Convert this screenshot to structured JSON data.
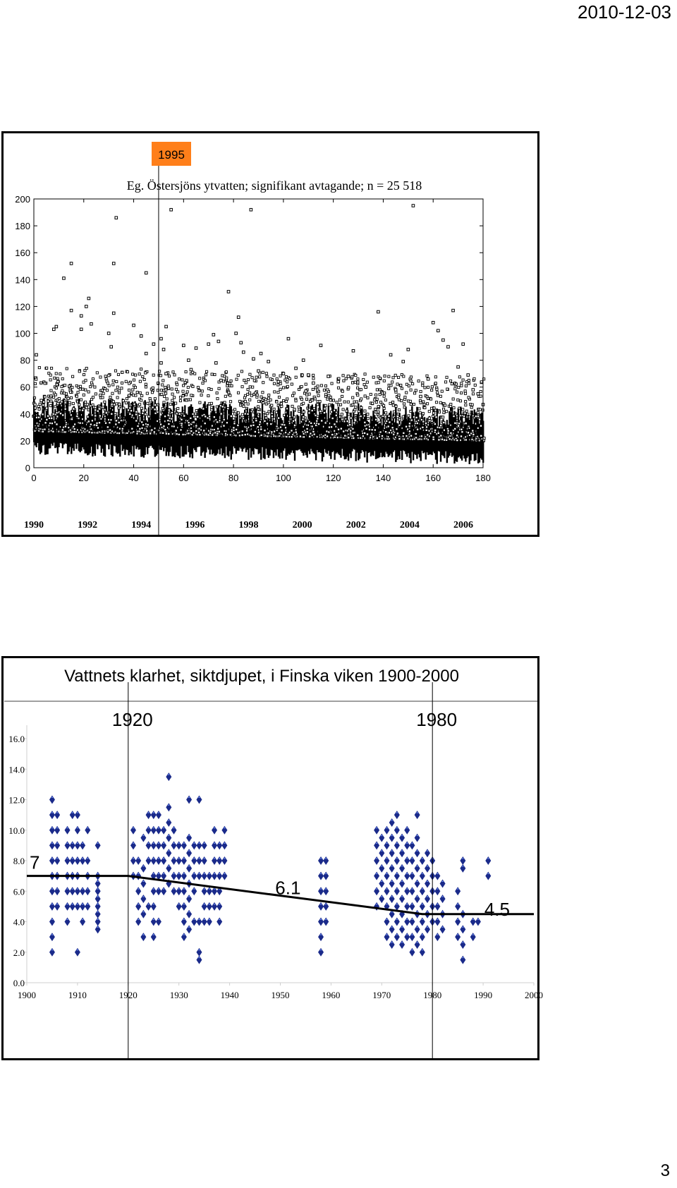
{
  "header": {
    "date": "2010-12-03"
  },
  "footer": {
    "page_number": "3"
  },
  "colors": {
    "marker_fill": "#1a2a8a",
    "marker_highlight": "#6a8af0",
    "year_badge": "#ff7f1a",
    "trend": "#000000",
    "grid": "#cfcfcf"
  },
  "chart_data": [
    {
      "type": "scatter",
      "title": "Eg. Östersjöns ytvatten; signifikant avtagande; n = 25 518",
      "highlight_label": "1995",
      "x_tick_labels": [
        "0",
        "20",
        "40",
        "60",
        "80",
        "100",
        "120",
        "140",
        "160",
        "180"
      ],
      "y_tick_labels": [
        "0",
        "20",
        "40",
        "60",
        "80",
        "100",
        "120",
        "140",
        "160",
        "180",
        "200"
      ],
      "x_year_labels": [
        "1990",
        "1992",
        "1994",
        "1996",
        "1998",
        "2000",
        "2002",
        "2004",
        "2006"
      ],
      "xlim": [
        0,
        180
      ],
      "ylim": [
        0,
        200
      ],
      "marker": "square-open",
      "series": [
        {
          "x": [
            1,
            3,
            8,
            9,
            12,
            15,
            15,
            19,
            19,
            21,
            22,
            23,
            30,
            31,
            32,
            32,
            33,
            40,
            43,
            45,
            45,
            48,
            51,
            51,
            52,
            53,
            53,
            55,
            60,
            62,
            63,
            65,
            70,
            72,
            73,
            74,
            75,
            78,
            81,
            82,
            83,
            84,
            87,
            88,
            90,
            91,
            94,
            98,
            100,
            102,
            105,
            108,
            109,
            110,
            112,
            115,
            118,
            122,
            126,
            128,
            133,
            138,
            143,
            145,
            148,
            150,
            152,
            155,
            158,
            160,
            162,
            164,
            166,
            168,
            170,
            172,
            174,
            176,
            178,
            180
          ],
          "y": [
            84,
            50,
            103,
            105,
            141,
            117,
            152,
            103,
            113,
            120,
            126,
            107,
            100,
            90,
            115,
            152,
            186,
            106,
            98,
            85,
            145,
            92,
            78,
            96,
            88,
            70,
            105,
            192,
            91,
            80,
            73,
            89,
            92,
            99,
            78,
            94,
            65,
            131,
            100,
            112,
            93,
            86,
            192,
            81,
            72,
            85,
            79,
            64,
            70,
            96,
            74,
            80,
            57,
            69,
            63,
            91,
            68,
            64,
            68,
            87,
            60,
            116,
            84,
            58,
            79,
            88,
            195,
            53,
            66,
            108,
            102,
            95,
            90,
            117,
            75,
            92,
            69,
            58,
            55,
            47
          ]
        }
      ],
      "trend": {
        "x": [
          0,
          180
        ],
        "y": [
          25,
          18
        ]
      },
      "vertical_line_x": 50
    },
    {
      "type": "scatter",
      "title": "Vattnets klarhet, siktdjupet, i Finska viken 1900-2000",
      "x_tick_labels": [
        "1900",
        "1910",
        "1920",
        "1930",
        "1940",
        "1950",
        "1960",
        "1970",
        "1980",
        "1990",
        "2000"
      ],
      "y_tick_labels": [
        "0.0",
        "2.0",
        "4.0",
        "6.0",
        "8.0",
        "10.0",
        "12.0",
        "14.0",
        "16.0"
      ],
      "xlim": [
        1900,
        2000
      ],
      "ylim": [
        0,
        16
      ],
      "marker_labels": [
        "1920",
        "1980"
      ],
      "marker_lines_x": [
        1920,
        1980
      ],
      "trend_labels": [
        "7",
        "6.1",
        "4.5"
      ],
      "trend": {
        "x": [
          1900,
          1920,
          1978,
          2000
        ],
        "y": [
          7.0,
          7.0,
          4.5,
          4.5
        ]
      },
      "series": [
        {
          "columns": [
            {
              "x": 1905,
              "y": [
                2,
                3,
                4,
                5,
                6,
                7,
                8,
                9,
                10,
                11,
                12
              ]
            },
            {
              "x": 1906,
              "y": [
                5,
                6,
                7,
                8,
                9,
                10,
                11
              ]
            },
            {
              "x": 1908,
              "y": [
                4,
                5,
                6,
                7,
                8,
                9,
                10
              ]
            },
            {
              "x": 1909,
              "y": [
                5,
                6,
                7,
                8,
                9,
                11
              ]
            },
            {
              "x": 1910,
              "y": [
                2,
                5,
                6,
                7,
                8,
                9,
                10,
                11
              ]
            },
            {
              "x": 1911,
              "y": [
                4,
                5,
                6,
                8,
                9
              ]
            },
            {
              "x": 1912,
              "y": [
                5,
                6,
                7,
                8,
                10
              ]
            },
            {
              "x": 1914,
              "y": [
                3.5,
                4,
                4.5,
                5,
                5.5,
                6,
                6.5,
                7,
                9
              ]
            },
            {
              "x": 1921,
              "y": [
                7,
                8,
                9,
                10
              ]
            },
            {
              "x": 1922,
              "y": [
                4,
                5,
                6,
                7,
                8
              ]
            },
            {
              "x": 1923,
              "y": [
                3,
                4.5,
                5.5,
                6.5,
                7.5,
                9.5
              ]
            },
            {
              "x": 1924,
              "y": [
                5,
                8,
                9,
                10,
                11
              ]
            },
            {
              "x": 1925,
              "y": [
                3,
                4,
                5,
                6,
                7,
                8,
                9,
                10,
                11
              ]
            },
            {
              "x": 1926,
              "y": [
                4,
                6,
                7,
                8,
                9,
                10,
                11
              ]
            },
            {
              "x": 1927,
              "y": [
                6,
                7,
                8,
                9,
                10
              ]
            },
            {
              "x": 1928,
              "y": [
                6.5,
                7.5,
                8.5,
                9.5,
                10.5,
                11.5,
                13.5
              ]
            },
            {
              "x": 1929,
              "y": [
                6,
                7,
                8,
                9,
                10
              ]
            },
            {
              "x": 1930,
              "y": [
                5,
                6,
                7,
                8,
                9
              ]
            },
            {
              "x": 1931,
              "y": [
                3,
                4,
                5,
                6,
                7,
                8,
                9
              ]
            },
            {
              "x": 1932,
              "y": [
                3.5,
                4.5,
                5.5,
                6.5,
                7.5,
                8.5,
                9.5,
                12
              ]
            },
            {
              "x": 1933,
              "y": [
                4,
                6,
                7,
                8,
                9
              ]
            },
            {
              "x": 1934,
              "y": [
                1.5,
                2,
                4,
                7,
                8,
                9,
                12
              ]
            },
            {
              "x": 1935,
              "y": [
                4,
                5,
                6,
                7,
                8,
                9
              ]
            },
            {
              "x": 1936,
              "y": [
                4,
                5,
                6,
                7
              ]
            },
            {
              "x": 1937,
              "y": [
                5,
                6,
                7,
                8,
                9,
                10
              ]
            },
            {
              "x": 1938,
              "y": [
                4,
                5,
                6,
                7,
                8,
                9
              ]
            },
            {
              "x": 1939,
              "y": [
                7,
                8,
                9,
                10
              ]
            },
            {
              "x": 1958,
              "y": [
                2,
                3,
                4,
                5,
                6,
                7,
                8
              ]
            },
            {
              "x": 1959,
              "y": [
                4,
                5,
                6,
                7,
                8
              ]
            },
            {
              "x": 1969,
              "y": [
                5,
                6,
                7,
                8,
                9,
                10
              ]
            },
            {
              "x": 1970,
              "y": [
                5.5,
                6.5,
                7.5,
                8.5,
                9.5
              ]
            },
            {
              "x": 1971,
              "y": [
                3,
                4,
                5,
                6,
                7,
                8,
                9,
                10
              ]
            },
            {
              "x": 1972,
              "y": [
                2.5,
                3.5,
                4.5,
                5.5,
                6.5,
                7.5,
                8.5,
                9.5,
                10.5
              ]
            },
            {
              "x": 1973,
              "y": [
                3,
                4,
                5,
                6,
                7,
                8,
                9,
                10,
                11
              ]
            },
            {
              "x": 1974,
              "y": [
                2.5,
                3.5,
                4.5,
                5.5,
                6.5,
                7.5,
                8.5,
                9.5
              ]
            },
            {
              "x": 1975,
              "y": [
                3,
                4,
                5,
                6,
                7,
                8,
                9,
                10
              ]
            },
            {
              "x": 1976,
              "y": [
                2,
                3,
                4,
                5,
                6,
                7,
                8,
                9
              ]
            },
            {
              "x": 1977,
              "y": [
                2.5,
                3.5,
                4.5,
                5.5,
                6.5,
                7.5,
                8.5,
                9.5,
                11
              ]
            },
            {
              "x": 1978,
              "y": [
                2,
                3,
                4,
                5,
                6,
                7,
                8
              ]
            },
            {
              "x": 1979,
              "y": [
                3.5,
                4.5,
                5.5,
                6.5,
                7.5,
                8.5
              ]
            },
            {
              "x": 1980,
              "y": [
                4,
                5,
                6,
                7,
                8
              ]
            },
            {
              "x": 1981,
              "y": [
                3,
                4,
                5,
                6,
                7
              ]
            },
            {
              "x": 1982,
              "y": [
                3.5,
                4.5,
                5.5,
                6.5
              ]
            },
            {
              "x": 1985,
              "y": [
                3,
                4,
                5,
                6
              ]
            },
            {
              "x": 1986,
              "y": [
                1.5,
                2.5,
                3.5,
                4.5,
                7.5,
                8
              ]
            },
            {
              "x": 1988,
              "y": [
                3,
                4
              ]
            },
            {
              "x": 1989,
              "y": [
                4
              ]
            },
            {
              "x": 1991,
              "y": [
                7,
                8
              ]
            }
          ]
        }
      ]
    }
  ]
}
